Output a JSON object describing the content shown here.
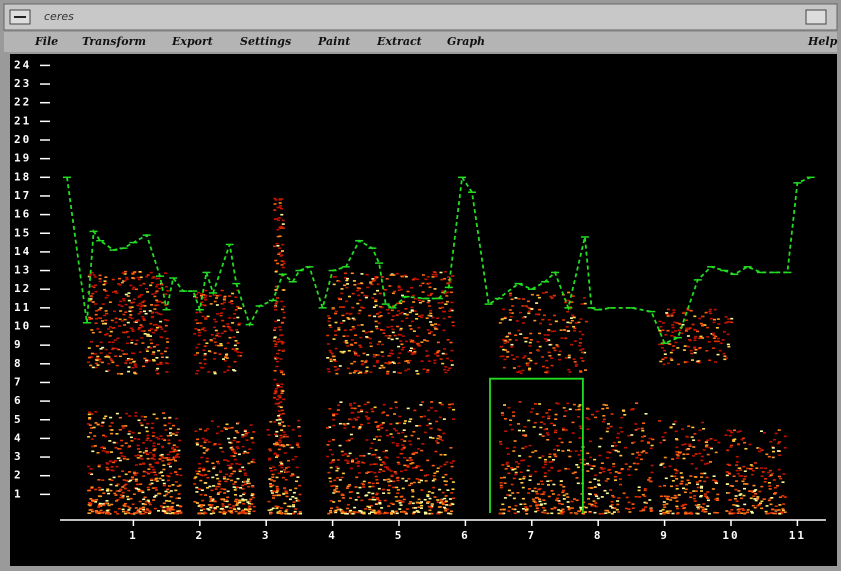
{
  "window": {
    "title": "ceres"
  },
  "menu": [
    "File",
    "Transform",
    "Export",
    "Settings",
    "Paint",
    "Extract",
    "Graph",
    "Help"
  ],
  "chart_data": {
    "type": "line",
    "xlim": [
      0,
      11.5
    ],
    "ylim": [
      0,
      24.5
    ],
    "xticks": [
      1,
      2,
      3,
      4,
      5,
      6,
      7,
      8,
      9,
      10,
      11
    ],
    "yticks": [
      1,
      2,
      3,
      4,
      5,
      6,
      7,
      8,
      9,
      10,
      11,
      12,
      13,
      14,
      15,
      16,
      17,
      18,
      19,
      20,
      21,
      22,
      23,
      24
    ],
    "series": [
      {
        "color": "#22dd22",
        "dashed": true,
        "x": [
          0.0,
          0.3,
          0.4,
          0.5,
          0.7,
          0.85,
          1.0,
          1.2,
          1.4,
          1.5,
          1.6,
          1.75,
          1.9,
          2.0,
          2.1,
          2.2,
          2.45,
          2.55,
          2.75,
          2.9,
          3.1,
          3.25,
          3.4,
          3.5,
          3.65,
          3.85,
          4.0,
          4.2,
          4.4,
          4.6,
          4.7,
          4.8,
          4.9,
          5.1,
          5.4,
          5.6,
          5.75,
          5.95,
          6.1,
          6.35,
          6.5,
          6.8,
          7.0,
          7.2,
          7.35,
          7.55,
          7.8,
          7.9,
          8.0,
          8.2,
          8.5,
          8.8,
          9.0,
          9.2,
          9.5,
          9.7,
          9.9,
          10.05,
          10.25,
          10.45,
          10.65,
          10.85,
          11.0,
          11.2
        ],
        "values": [
          18.0,
          10.2,
          15.1,
          14.6,
          14.1,
          14.2,
          14.5,
          14.9,
          12.7,
          10.9,
          12.6,
          11.9,
          11.9,
          10.9,
          12.9,
          11.8,
          14.4,
          12.3,
          10.1,
          11.1,
          11.4,
          12.8,
          12.4,
          13.0,
          13.2,
          11.0,
          13.0,
          13.2,
          14.6,
          14.2,
          13.4,
          11.2,
          11.0,
          11.6,
          11.5,
          11.5,
          12.1,
          18.0,
          17.2,
          11.2,
          11.5,
          12.3,
          12.0,
          12.4,
          12.9,
          11.0,
          14.8,
          11.0,
          10.9,
          11.0,
          11.0,
          10.8,
          9.1,
          9.4,
          12.5,
          13.2,
          13.0,
          12.8,
          13.2,
          12.9,
          12.9,
          12.9,
          17.7,
          18.0
        ]
      },
      {
        "color": "#22dd22",
        "dashed": false,
        "x": [
          6.37,
          6.37,
          7.77,
          7.77
        ],
        "values": [
          0,
          7.2,
          7.2,
          0
        ]
      }
    ]
  }
}
